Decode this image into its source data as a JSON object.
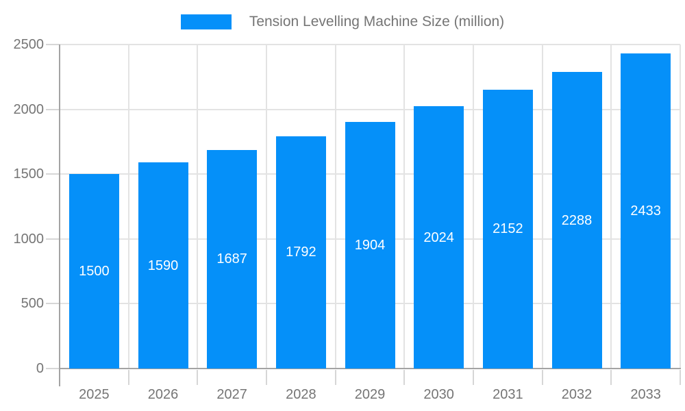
{
  "legend": {
    "label": "Tension Levelling Machine Size (million)"
  },
  "chart_data": {
    "type": "bar",
    "title": "Tension Levelling Machine Size (million)",
    "categories": [
      "2025",
      "2026",
      "2027",
      "2028",
      "2029",
      "2030",
      "2031",
      "2032",
      "2033"
    ],
    "series": [
      {
        "name": "Tension Levelling Machine Size (million)",
        "values": [
          1500,
          1590,
          1687,
          1792,
          1904,
          2024,
          2152,
          2288,
          2433
        ]
      }
    ],
    "xlabel": "",
    "ylabel": "",
    "ylim": [
      0,
      2500
    ],
    "yticks": [
      0,
      500,
      1000,
      1500,
      2000,
      2500
    ],
    "grid": true,
    "legend_position": "top-center",
    "bar_color": "#0590f9",
    "bar_label_color": "#ffffff",
    "axis_text_color": "#757575",
    "axis_line_color": "#a3a3a3",
    "gridline_color": "#e3e3e3",
    "tick_color": "#d6d6d6"
  }
}
